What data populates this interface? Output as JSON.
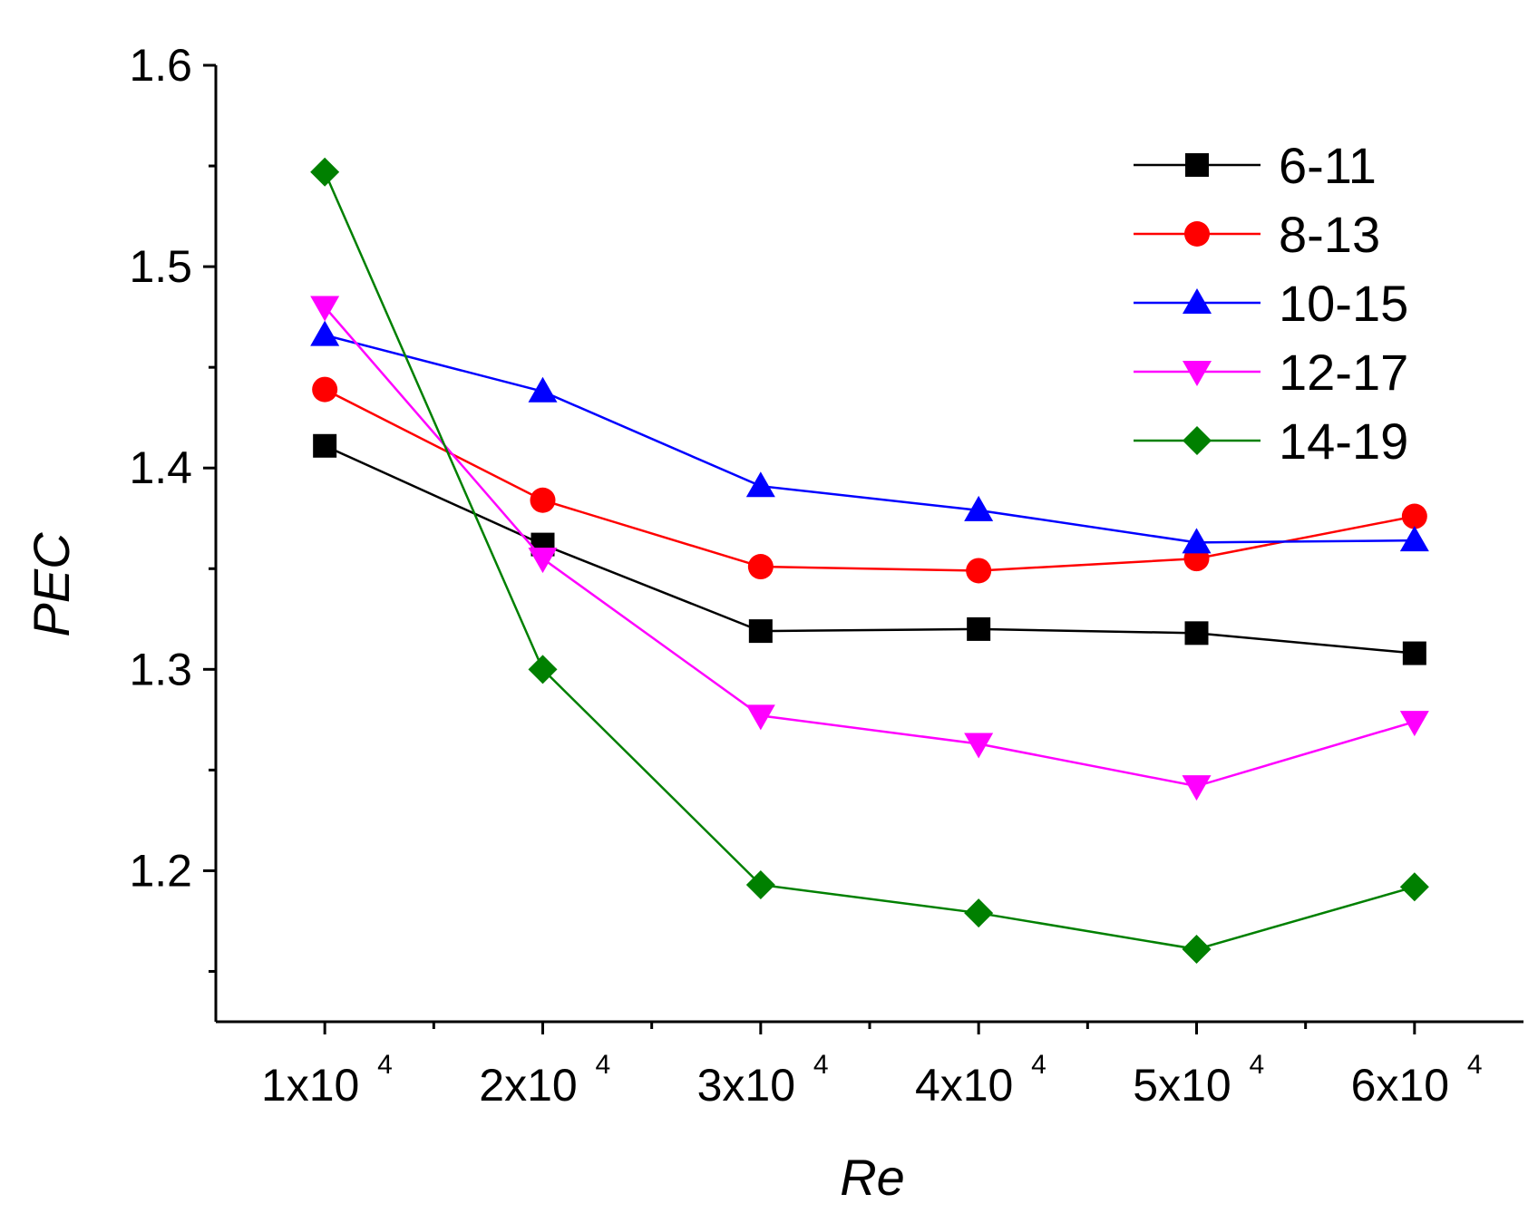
{
  "chart_data": {
    "type": "line",
    "title": "",
    "xlabel": "Re",
    "ylabel": "PEC",
    "x": [
      10000,
      20000,
      30000,
      40000,
      50000,
      60000
    ],
    "x_tick_labels": [
      {
        "base": "1x10",
        "exp": "4"
      },
      {
        "base": "2x10",
        "exp": "4"
      },
      {
        "base": "3x10",
        "exp": "4"
      },
      {
        "base": "4x10",
        "exp": "4"
      },
      {
        "base": "5x10",
        "exp": "4"
      },
      {
        "base": "6x10",
        "exp": "4"
      }
    ],
    "xlim": [
      5000,
      65000
    ],
    "ylim": [
      1.125,
      1.6
    ],
    "y_ticks": [
      "1.2",
      "1.3",
      "1.4",
      "1.5",
      "1.6"
    ],
    "y_tick_values": [
      1.2,
      1.3,
      1.4,
      1.5,
      1.6
    ],
    "y_minor_ticks": [
      1.15,
      1.25,
      1.35,
      1.45,
      1.55
    ],
    "grid": false,
    "legend_position": "top-right",
    "series": [
      {
        "name": "6-11",
        "color": "#000000",
        "marker": "square",
        "values": [
          1.411,
          1.362,
          1.319,
          1.32,
          1.318,
          1.308
        ]
      },
      {
        "name": "8-13",
        "color": "#ff0000",
        "marker": "circle",
        "values": [
          1.439,
          1.384,
          1.351,
          1.349,
          1.355,
          1.376
        ]
      },
      {
        "name": "10-15",
        "color": "#0000ff",
        "marker": "triangle-up",
        "values": [
          1.466,
          1.438,
          1.391,
          1.379,
          1.363,
          1.364
        ]
      },
      {
        "name": "12-17",
        "color": "#ff00ff",
        "marker": "triangle-down",
        "values": [
          1.48,
          1.355,
          1.277,
          1.263,
          1.242,
          1.274
        ]
      },
      {
        "name": "14-19",
        "color": "#008000",
        "marker": "diamond",
        "values": [
          1.547,
          1.3,
          1.193,
          1.179,
          1.161,
          1.192
        ]
      }
    ]
  }
}
